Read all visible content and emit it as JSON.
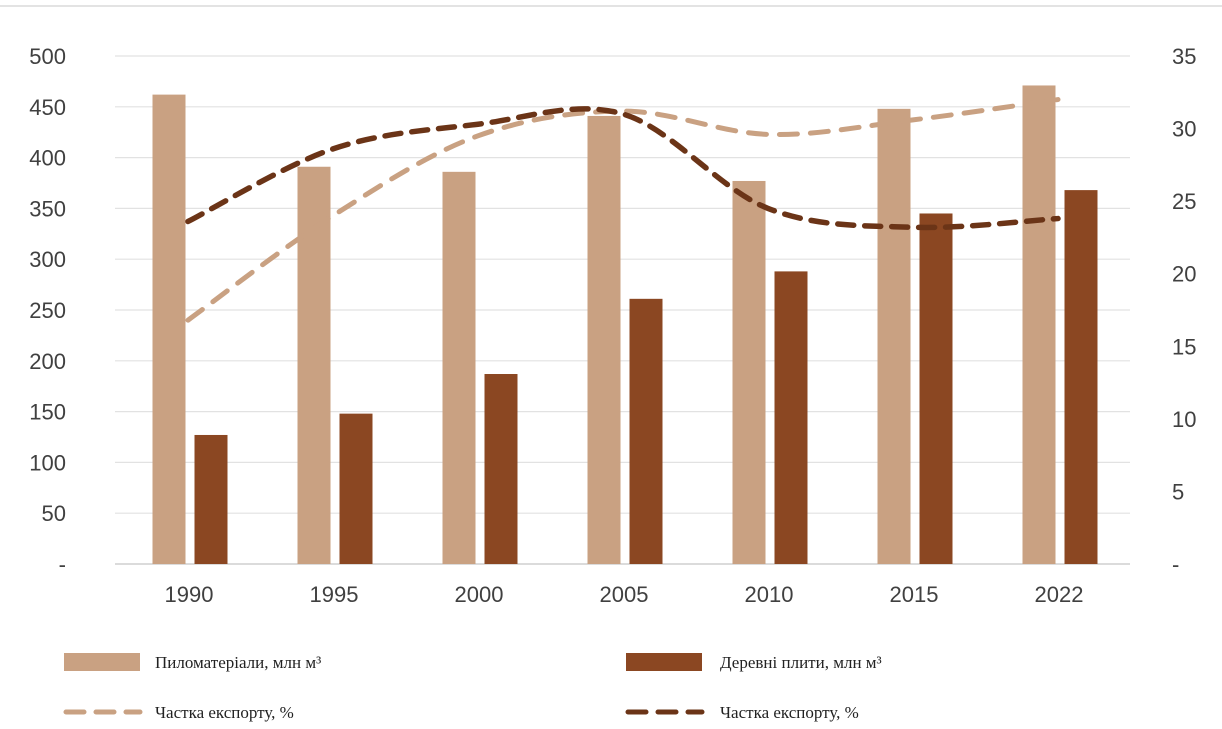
{
  "chart_data": {
    "type": "bar",
    "title": "",
    "xlabel": "",
    "ylabel": "",
    "categories": [
      "1990",
      "1995",
      "2000",
      "2005",
      "2010",
      "2015",
      "2022"
    ],
    "ylim": [
      0,
      500
    ],
    "y_ticks": [
      "-",
      "50",
      "100",
      "150",
      "200",
      "250",
      "300",
      "350",
      "400",
      "450",
      "500"
    ],
    "y2lim": [
      0,
      35
    ],
    "y2_ticks": [
      "-",
      "5",
      "10",
      "15",
      "20",
      "25",
      "30",
      "35"
    ],
    "grid": true,
    "legend_position": "bottom",
    "series": [
      {
        "name": "Пиломатеріали, млн м³",
        "type": "bar",
        "axis": "left",
        "color": "#C9A182",
        "values": [
          462,
          391,
          386,
          441,
          377,
          448,
          471
        ]
      },
      {
        "name": "Деревні плити, млн м³",
        "type": "bar",
        "axis": "left",
        "color": "#8B4722",
        "values": [
          127,
          148,
          187,
          261,
          288,
          345,
          368
        ]
      },
      {
        "name": "Частка експорту, %",
        "type": "line",
        "dashed": true,
        "axis": "right",
        "color": "#C9A182",
        "values": [
          16.8,
          24.0,
          29.5,
          31.2,
          29.6,
          30.6,
          32.0
        ]
      },
      {
        "name": "Частка експорту, %",
        "type": "line",
        "dashed": true,
        "axis": "right",
        "color": "#6B3417",
        "values": [
          23.6,
          28.6,
          30.3,
          31.0,
          24.5,
          23.2,
          23.8
        ]
      }
    ]
  }
}
